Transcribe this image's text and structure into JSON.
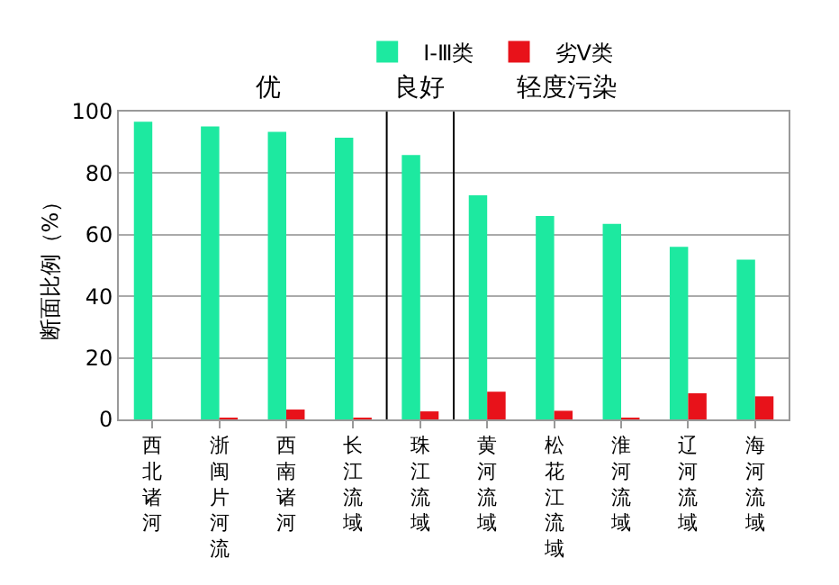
{
  "chart_data": {
    "type": "bar",
    "categories": [
      "西北诸河",
      "浙闽片河流",
      "西南诸河",
      "长江流域",
      "珠江流域",
      "黄河流域",
      "松花江流域",
      "淮河流域",
      "辽河流域",
      "海河流域"
    ],
    "series": [
      {
        "name": "Ⅰ-Ⅲ类",
        "color": "#1de9a0",
        "values": [
          96.7,
          95.2,
          93.4,
          91.5,
          85.9,
          72.8,
          66.1,
          63.5,
          56.1,
          51.9
        ]
      },
      {
        "name": "劣Ⅴ类",
        "color": "#e8121a",
        "values": [
          0,
          0.5,
          3.2,
          0.5,
          2.6,
          9.0,
          2.8,
          0.5,
          8.5,
          7.5
        ]
      }
    ],
    "ylabel": "断面比例（%）",
    "ylim": [
      0,
      100
    ],
    "yticks": [
      0,
      20,
      40,
      60,
      80,
      100
    ],
    "annotations": [
      "优",
      "良好",
      "轻度污染"
    ],
    "grid": "y",
    "legend": "top"
  }
}
